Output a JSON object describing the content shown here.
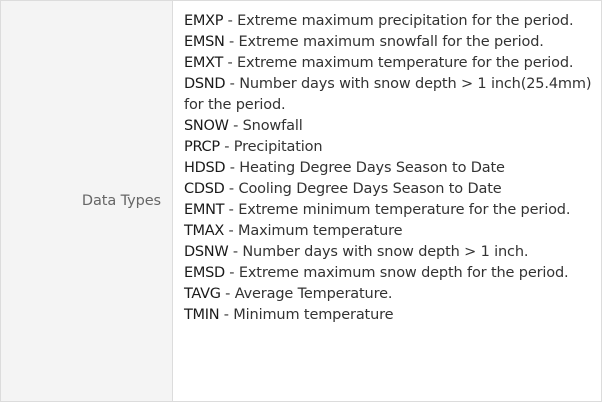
{
  "row": {
    "label": "Data Types",
    "items": [
      {
        "code": "EMXP",
        "desc": " - Extreme maximum precipitation for the period."
      },
      {
        "code": "EMSN",
        "desc": " - Extreme maximum snowfall for the period."
      },
      {
        "code": "EMXT",
        "desc": " - Extreme maximum temperature for the period."
      },
      {
        "code": "DSND",
        "desc": " - Number days with snow depth > 1 inch(25.4mm) for the period."
      },
      {
        "code": "SNOW",
        "desc": " - Snowfall"
      },
      {
        "code": "PRCP",
        "desc": " - Precipitation"
      },
      {
        "code": "HDSD",
        "desc": " - Heating Degree Days Season to Date"
      },
      {
        "code": "CDSD",
        "desc": " - Cooling Degree Days Season to Date"
      },
      {
        "code": "EMNT",
        "desc": " - Extreme minimum temperature for the period."
      },
      {
        "code": "TMAX",
        "desc": " - Maximum temperature"
      },
      {
        "code": "DSNW",
        "desc": " - Number days with snow depth > 1 inch."
      },
      {
        "code": "EMSD",
        "desc": " - Extreme maximum snow depth for the period."
      },
      {
        "code": "TAVG",
        "desc": " - Average Temperature."
      },
      {
        "code": "TMIN",
        "desc": " - Minimum temperature"
      }
    ]
  }
}
